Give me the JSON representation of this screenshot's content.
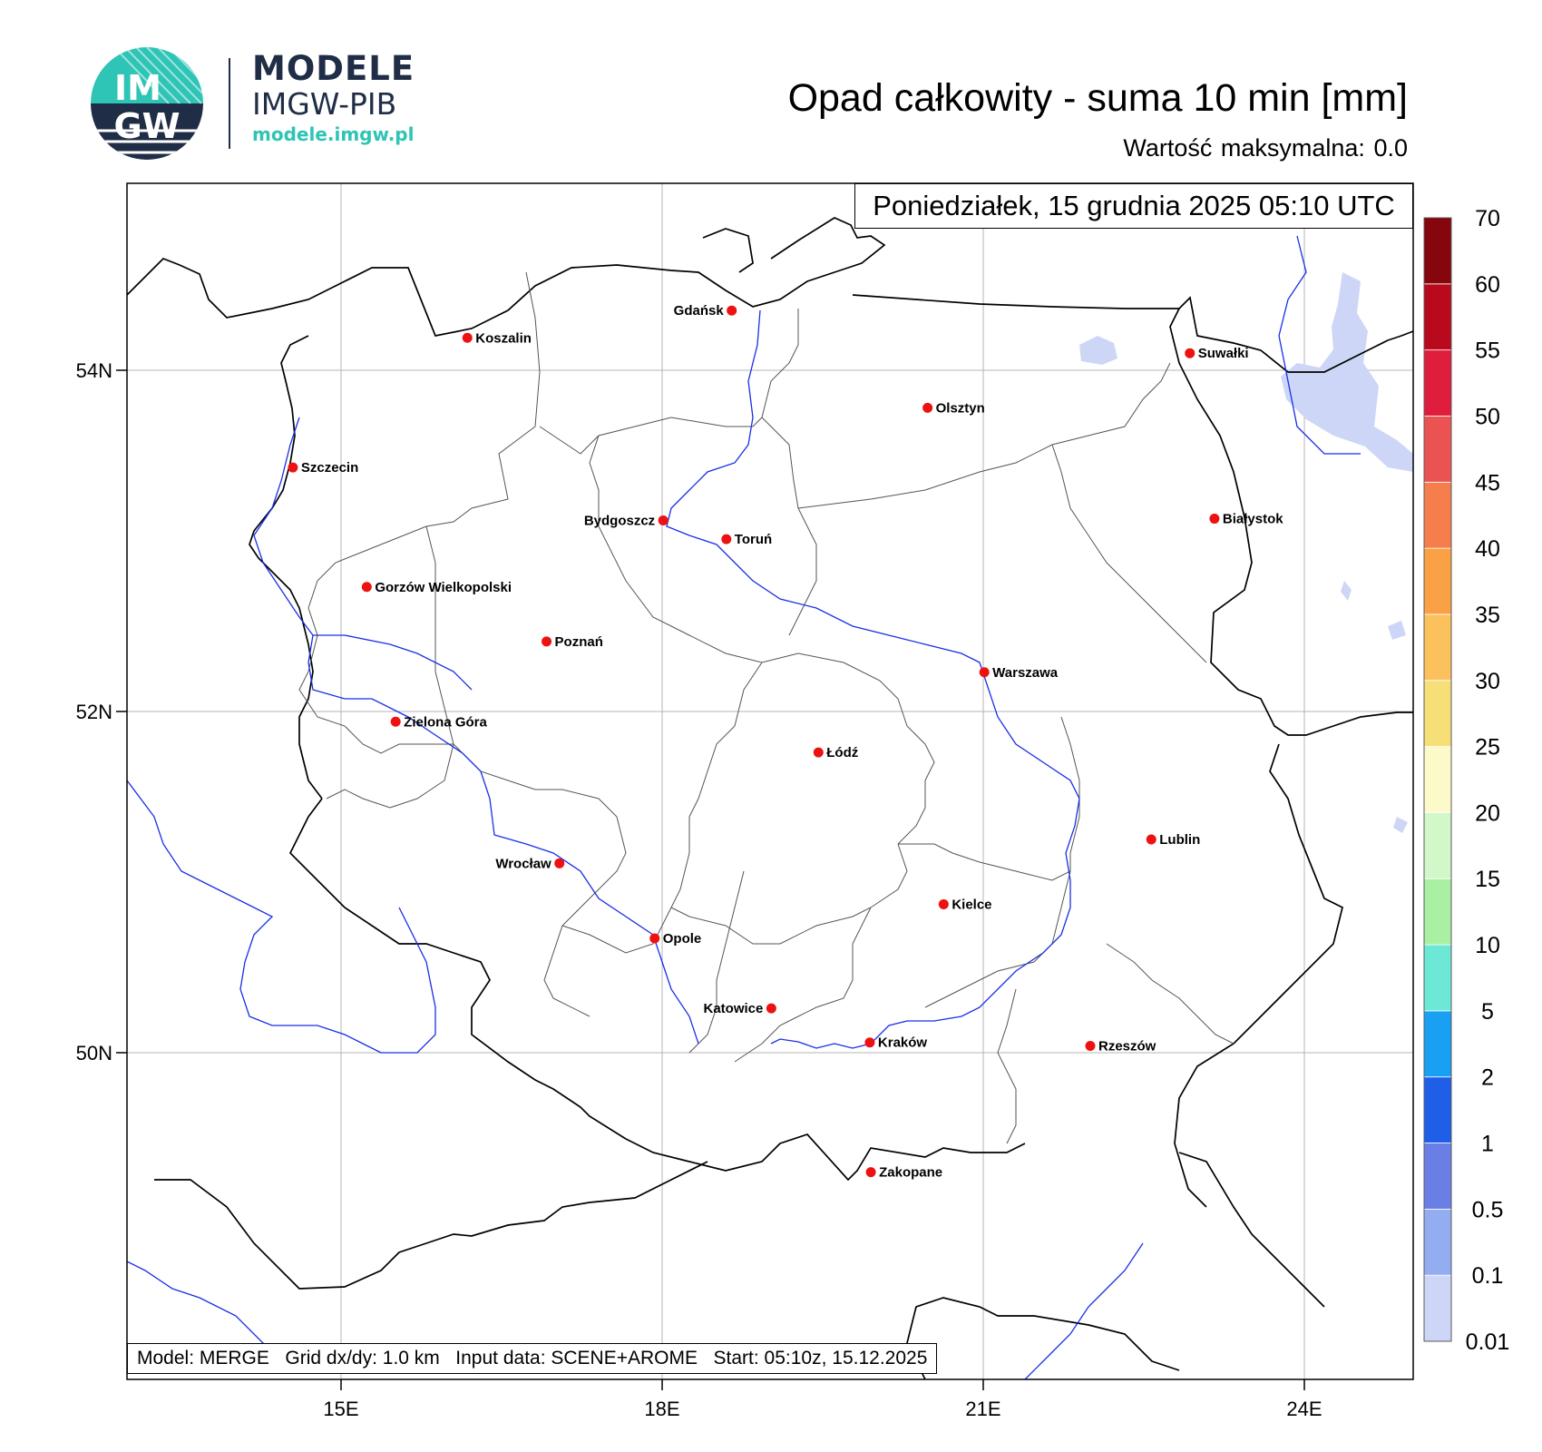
{
  "logo": {
    "initials_top": "IM",
    "initials_bottom": "GW",
    "brand_line1": "MODELE",
    "brand_line2": "IMGW-PIB",
    "brand_url": "modele.imgw.pl",
    "colors": {
      "navy": "#1f2d46",
      "teal": "#2ec4b6"
    }
  },
  "header": {
    "title": "Opad całkowity - suma 10 min [mm]",
    "max_label": "Wartość maksymalna:",
    "max_value": "0.0"
  },
  "date_box": "Poniedziałek, 15 grudnia 2025 05:10 UTC",
  "footer": {
    "model": "Model: MERGE",
    "grid": "Grid dx/dy: 1.0 km",
    "input": "Input data: SCENE+AROME",
    "start": "Start: 05:10z, 15.12.2025"
  },
  "axes": {
    "x_ticks": [
      {
        "lon": 15,
        "label": "15E"
      },
      {
        "lon": 18,
        "label": "18E"
      },
      {
        "lon": 21,
        "label": "21E"
      },
      {
        "lon": 24,
        "label": "24E"
      }
    ],
    "y_ticks": [
      {
        "lat": 54,
        "label": "54N"
      },
      {
        "lat": 52,
        "label": "52N"
      },
      {
        "lat": 50,
        "label": "50N"
      }
    ]
  },
  "cities": [
    {
      "name": "Gdańsk",
      "lon": 18.65,
      "lat": 54.35,
      "anchor": "end"
    },
    {
      "name": "Koszalin",
      "lon": 16.18,
      "lat": 54.19,
      "anchor": "start"
    },
    {
      "name": "Suwałki",
      "lon": 22.93,
      "lat": 54.1,
      "anchor": "start"
    },
    {
      "name": "Olsztyn",
      "lon": 20.48,
      "lat": 53.78,
      "anchor": "start"
    },
    {
      "name": "Szczecin",
      "lon": 14.55,
      "lat": 53.43,
      "anchor": "start"
    },
    {
      "name": "Białystok",
      "lon": 23.16,
      "lat": 53.13,
      "anchor": "start"
    },
    {
      "name": "Bydgoszcz",
      "lon": 18.01,
      "lat": 53.12,
      "anchor": "end"
    },
    {
      "name": "Toruń",
      "lon": 18.6,
      "lat": 53.01,
      "anchor": "start"
    },
    {
      "name": "Gorzów Wielkopolski",
      "lon": 15.24,
      "lat": 52.73,
      "anchor": "start"
    },
    {
      "name": "Poznań",
      "lon": 16.92,
      "lat": 52.41,
      "anchor": "start"
    },
    {
      "name": "Warszawa",
      "lon": 21.01,
      "lat": 52.23,
      "anchor": "start"
    },
    {
      "name": "Zielona Góra",
      "lon": 15.51,
      "lat": 51.94,
      "anchor": "start"
    },
    {
      "name": "Łódź",
      "lon": 19.46,
      "lat": 51.76,
      "anchor": "start"
    },
    {
      "name": "Lublin",
      "lon": 22.57,
      "lat": 51.25,
      "anchor": "start"
    },
    {
      "name": "Wrocław",
      "lon": 17.04,
      "lat": 51.11,
      "anchor": "end"
    },
    {
      "name": "Kielce",
      "lon": 20.63,
      "lat": 50.87,
      "anchor": "start"
    },
    {
      "name": "Opole",
      "lon": 17.93,
      "lat": 50.67,
      "anchor": "start"
    },
    {
      "name": "Katowice",
      "lon": 19.02,
      "lat": 50.26,
      "anchor": "end"
    },
    {
      "name": "Rzeszów",
      "lon": 22.0,
      "lat": 50.04,
      "anchor": "start"
    },
    {
      "name": "Kraków",
      "lon": 19.94,
      "lat": 50.06,
      "anchor": "start"
    },
    {
      "name": "Zakopane",
      "lon": 19.95,
      "lat": 49.3,
      "anchor": "start"
    }
  ],
  "colorbar": {
    "levels": [
      "0.01",
      "0.1",
      "0.5",
      "1",
      "2",
      "5",
      "10",
      "15",
      "20",
      "25",
      "30",
      "35",
      "40",
      "45",
      "50",
      "55",
      "60",
      "70"
    ],
    "colors": [
      "#cdd6f6",
      "#93adf0",
      "#6a7fe6",
      "#1f5fe8",
      "#1aa0f2",
      "#6de8d6",
      "#aaf0a2",
      "#d2f7c8",
      "#fbfac8",
      "#f7df78",
      "#fbc15c",
      "#fba145",
      "#f67e4c",
      "#ea5352",
      "#df1d3d",
      "#b80a1c",
      "#86060e"
    ]
  },
  "precip_color": "#cdd6f6",
  "river_color": "#1a2ee6",
  "city_color": "#ee1111"
}
